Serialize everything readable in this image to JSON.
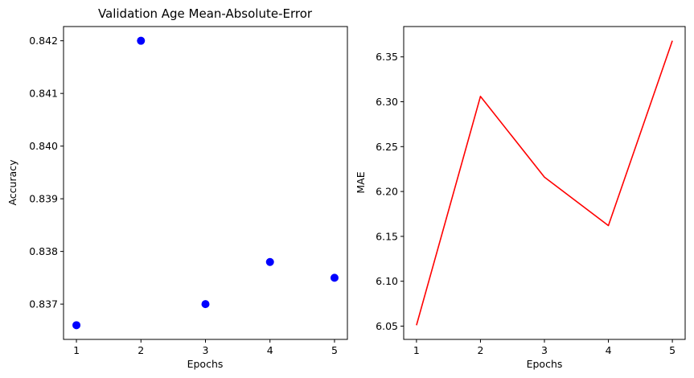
{
  "chart_data": [
    {
      "type": "scatter",
      "title": "Validation Age Mean-Absolute-Error",
      "xlabel": "Epochs",
      "ylabel": "Accuracy",
      "x": [
        1,
        2,
        3,
        4,
        5
      ],
      "y": [
        0.8366,
        0.842,
        0.837,
        0.8378,
        0.8375
      ],
      "xlim": [
        0.8,
        5.2
      ],
      "ylim": [
        0.83633,
        0.84227
      ],
      "xticks": [
        1,
        2,
        3,
        4,
        5
      ],
      "xtick_labels": [
        "1",
        "2",
        "3",
        "4",
        "5"
      ],
      "yticks": [
        0.837,
        0.838,
        0.839,
        0.84,
        0.841,
        0.842
      ],
      "ytick_labels": [
        "0.837",
        "0.838",
        "0.839",
        "0.840",
        "0.841",
        "0.842"
      ],
      "color": "#0000ff",
      "grid": false
    },
    {
      "type": "line",
      "title": "",
      "xlabel": "Epochs",
      "ylabel": "MAE",
      "x": [
        1,
        2,
        3,
        4,
        5
      ],
      "y": [
        6.051,
        6.306,
        6.216,
        6.162,
        6.368
      ],
      "xlim": [
        0.8,
        5.2
      ],
      "ylim": [
        6.0352,
        6.3838
      ],
      "xticks": [
        1,
        2,
        3,
        4,
        5
      ],
      "xtick_labels": [
        "1",
        "2",
        "3",
        "4",
        "5"
      ],
      "yticks": [
        6.05,
        6.1,
        6.15,
        6.2,
        6.25,
        6.3,
        6.35
      ],
      "ytick_labels": [
        "6.05",
        "6.10",
        "6.15",
        "6.20",
        "6.25",
        "6.30",
        "6.35"
      ],
      "color": "#ff0000",
      "grid": false
    }
  ]
}
